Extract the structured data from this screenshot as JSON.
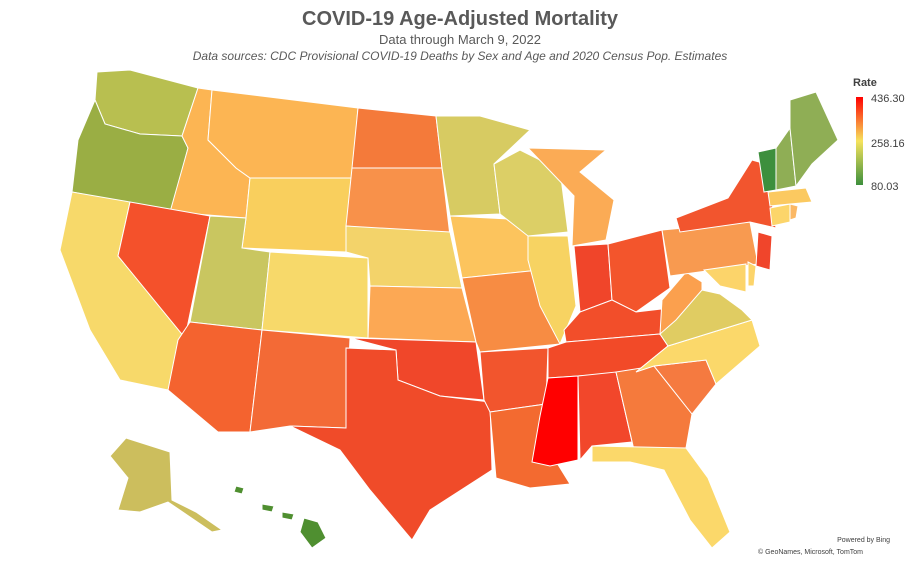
{
  "header": {
    "title": "COVID-19 Age-Adjusted Mortality",
    "subtitle": "Data through March 9, 2022",
    "sources": "Data sources: CDC Provisional COVID-19 Deaths by Sex and Age and 2020 Census Pop. Estimates"
  },
  "legend": {
    "title": "Rate",
    "max": "436.30",
    "mid": "258.16",
    "min": "80.03",
    "colors": {
      "high": "#ff0000",
      "mid": "#f6e35d",
      "low": "#3d8f3d"
    }
  },
  "attribution": {
    "powered": "Powered by Bing",
    "credits": "© GeoNames, Microsoft, TomTom"
  },
  "states": [
    {
      "code": "WA",
      "color": "#b8bf50"
    },
    {
      "code": "OR",
      "color": "#9aae44"
    },
    {
      "code": "CA",
      "color": "#f7d96a"
    },
    {
      "code": "ID",
      "color": "#fcb553"
    },
    {
      "code": "NV",
      "color": "#f4512b"
    },
    {
      "code": "MT",
      "color": "#fcb553"
    },
    {
      "code": "WY",
      "color": "#f9cf5d"
    },
    {
      "code": "UT",
      "color": "#c9c660"
    },
    {
      "code": "AZ",
      "color": "#f4632f"
    },
    {
      "code": "CO",
      "color": "#f7d96a"
    },
    {
      "code": "NM",
      "color": "#f36a36"
    },
    {
      "code": "ND",
      "color": "#f47a3a"
    },
    {
      "code": "SD",
      "color": "#f8914a"
    },
    {
      "code": "NE",
      "color": "#f3d36a"
    },
    {
      "code": "KS",
      "color": "#fca854"
    },
    {
      "code": "OK",
      "color": "#f0472a"
    },
    {
      "code": "TX",
      "color": "#f04b29"
    },
    {
      "code": "MN",
      "color": "#d7cb62"
    },
    {
      "code": "IA",
      "color": "#fcc45d"
    },
    {
      "code": "MO",
      "color": "#f78c43"
    },
    {
      "code": "AR",
      "color": "#f2552d"
    },
    {
      "code": "LA",
      "color": "#f36a30"
    },
    {
      "code": "WI",
      "color": "#dccf66"
    },
    {
      "code": "IL",
      "color": "#f7d362"
    },
    {
      "code": "MI",
      "color": "#fbab55"
    },
    {
      "code": "IN",
      "color": "#f0452a"
    },
    {
      "code": "OH",
      "color": "#f3552c"
    },
    {
      "code": "KY",
      "color": "#f24e2a"
    },
    {
      "code": "TN",
      "color": "#f24a28"
    },
    {
      "code": "MS",
      "color": "#ff0000"
    },
    {
      "code": "AL",
      "color": "#f2472b"
    },
    {
      "code": "GA",
      "color": "#f57a3c"
    },
    {
      "code": "FL",
      "color": "#fbd86a"
    },
    {
      "code": "SC",
      "color": "#f57a40"
    },
    {
      "code": "NC",
      "color": "#fbd86a"
    },
    {
      "code": "VA",
      "color": "#e0cc62"
    },
    {
      "code": "WV",
      "color": "#fba04e"
    },
    {
      "code": "PA",
      "color": "#f89a50"
    },
    {
      "code": "NY",
      "color": "#f2552e"
    },
    {
      "code": "NJ",
      "color": "#f0452b"
    },
    {
      "code": "MD",
      "color": "#fcd46a"
    },
    {
      "code": "DE",
      "color": "#fcd46a"
    },
    {
      "code": "CT",
      "color": "#fcd56a"
    },
    {
      "code": "RI",
      "color": "#fbb865"
    },
    {
      "code": "MA",
      "color": "#fbc960"
    },
    {
      "code": "VT",
      "color": "#3d8f3d"
    },
    {
      "code": "NH",
      "color": "#8fae55"
    },
    {
      "code": "ME",
      "color": "#8fae55"
    },
    {
      "code": "AK",
      "color": "#ccbe5d"
    },
    {
      "code": "HI",
      "color": "#4f8f30"
    }
  ]
}
